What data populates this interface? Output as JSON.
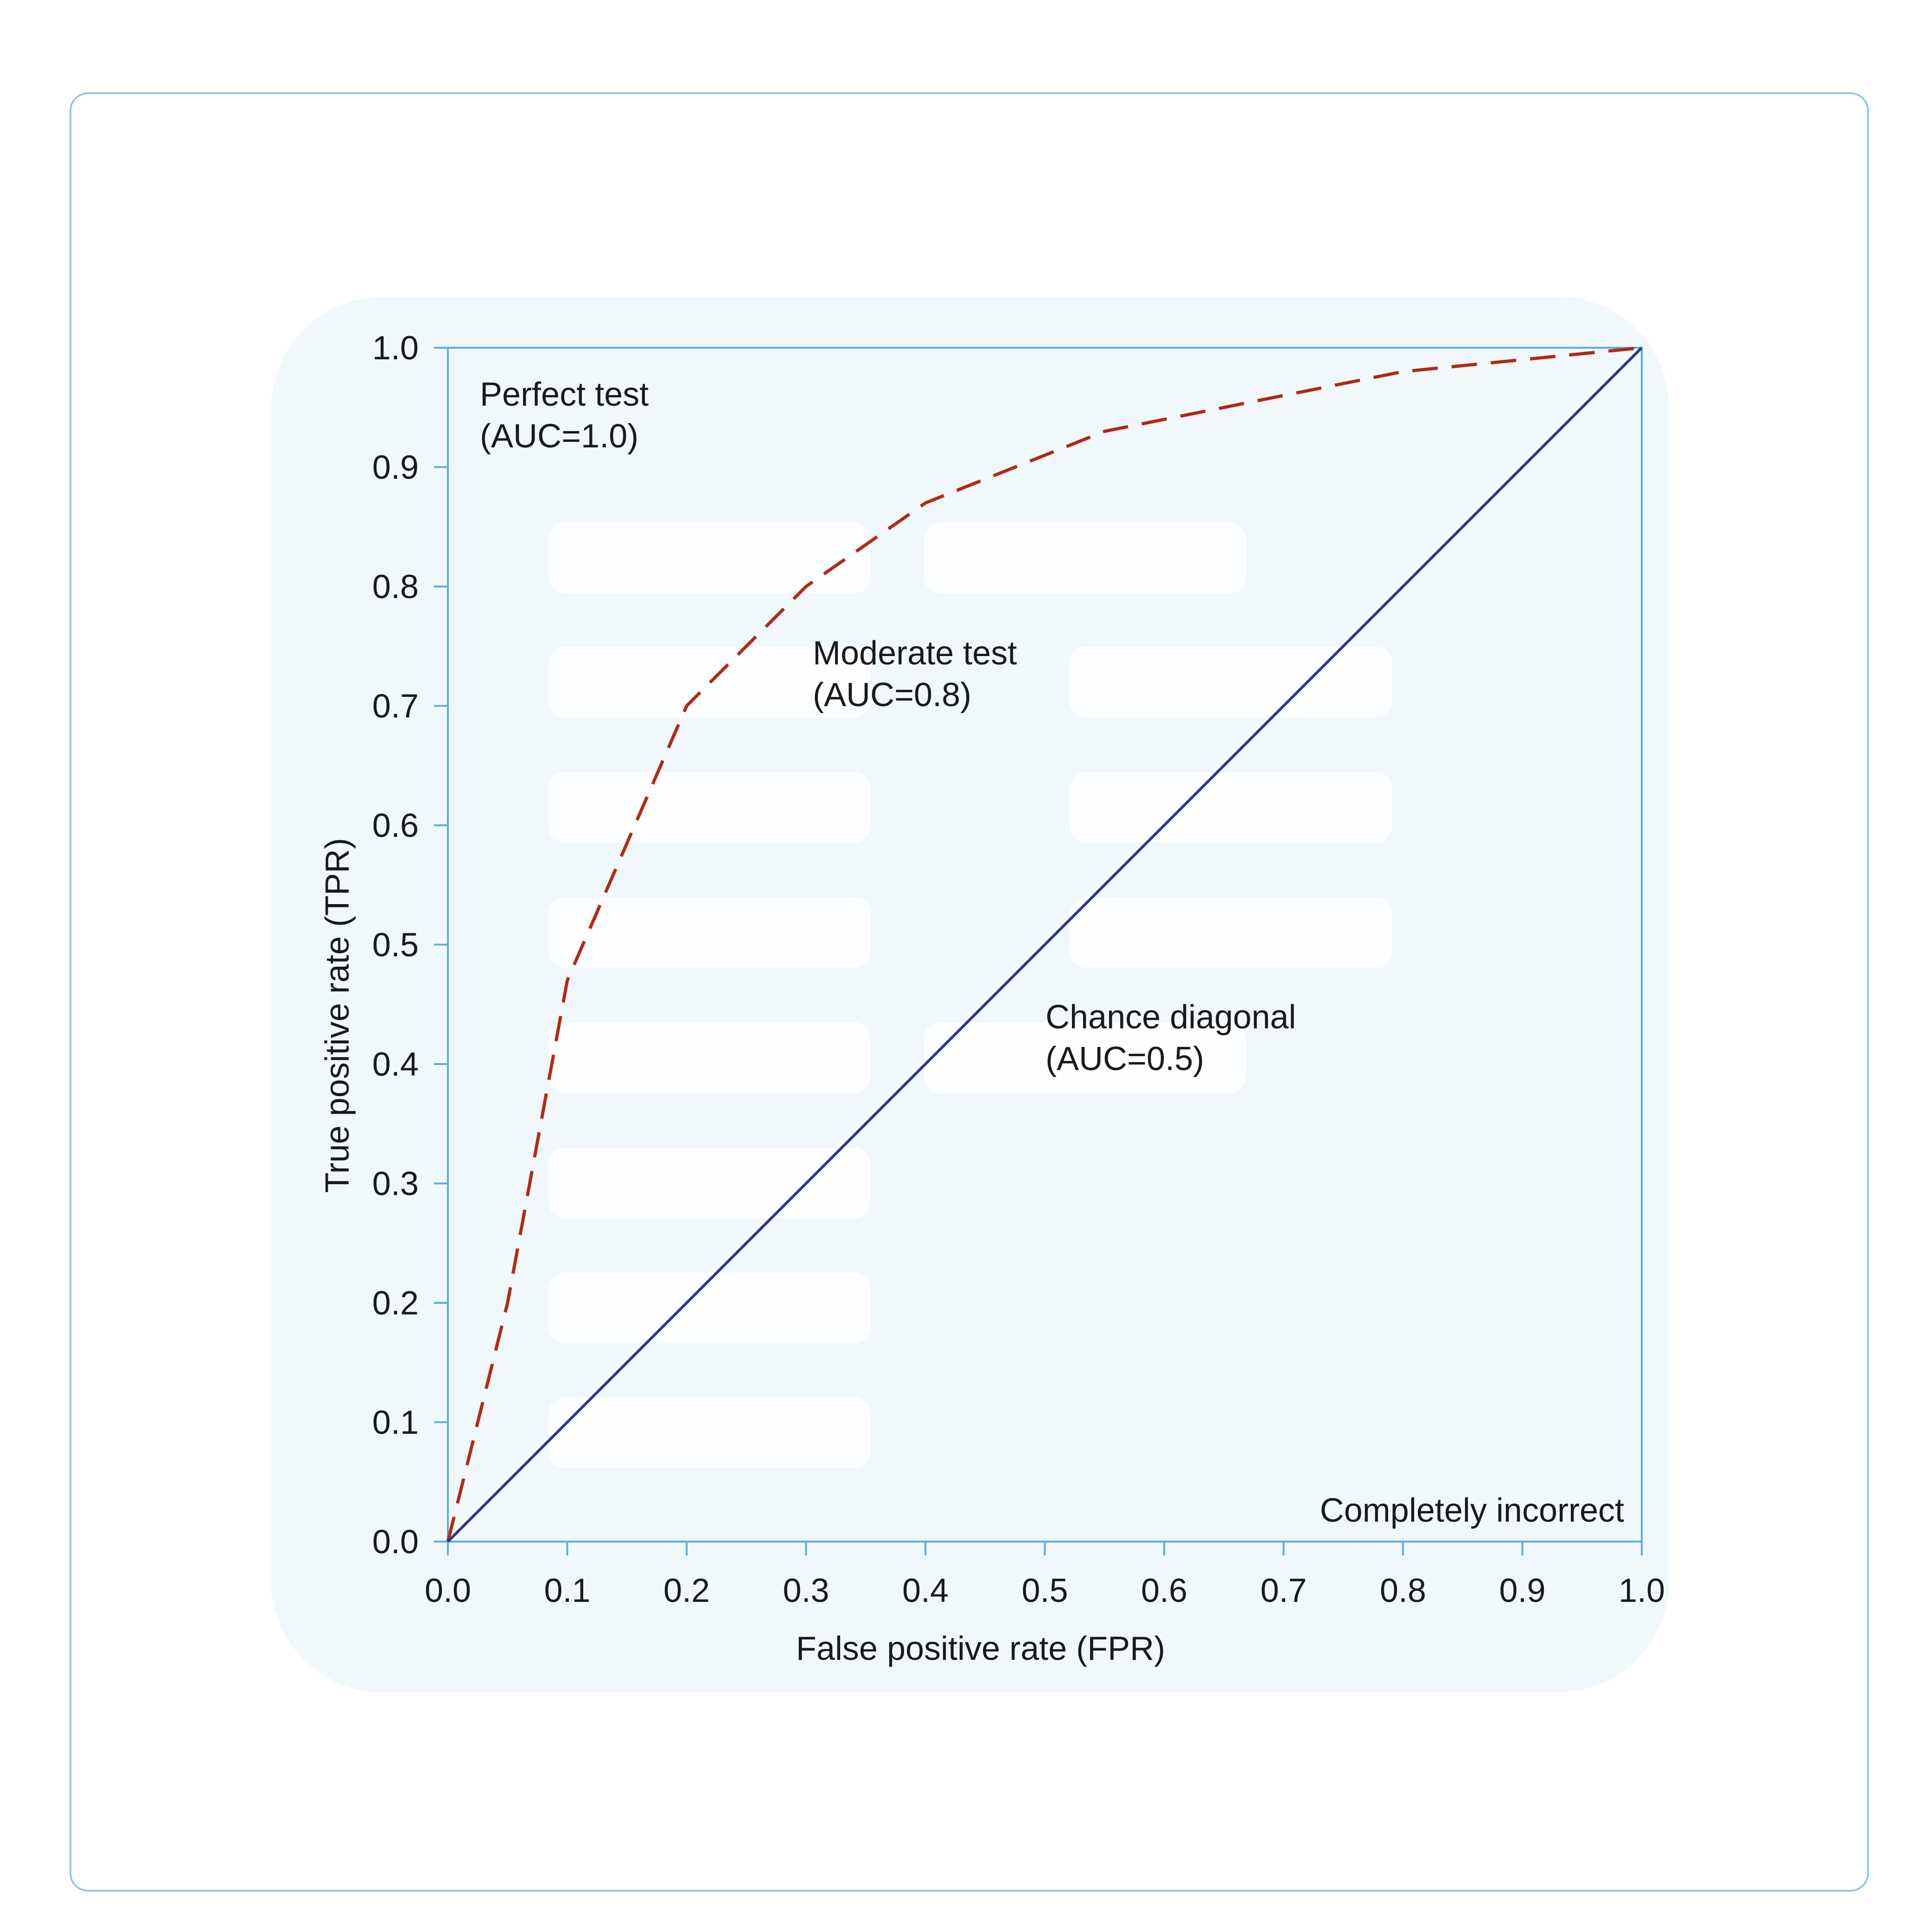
{
  "chart_data": {
    "type": "line",
    "title": "",
    "xlabel": "False positive rate (FPR)",
    "ylabel": "True positive rate (TPR)",
    "xlim": [
      0,
      1
    ],
    "ylim": [
      0,
      1
    ],
    "x_ticks": [
      "0.0",
      "0.1",
      "0.2",
      "0.3",
      "0.4",
      "0.5",
      "0.6",
      "0.7",
      "0.8",
      "0.9",
      "1.0"
    ],
    "y_ticks": [
      "0.0",
      "0.1",
      "0.2",
      "0.3",
      "0.4",
      "0.5",
      "0.6",
      "0.7",
      "0.8",
      "0.9",
      "1.0"
    ],
    "grid": false,
    "series": [
      {
        "style": "dashed",
        "color": "#b22a12",
        "x": [
          0.0,
          0.05,
          0.1,
          0.2,
          0.3,
          0.4,
          0.55,
          0.8,
          1.0
        ],
        "y": [
          0.0,
          0.2,
          0.47,
          0.7,
          0.8,
          0.87,
          0.93,
          0.98,
          1.0
        ]
      },
      {
        "style": "solid",
        "color": "#2d3a8c",
        "x": [
          0.0,
          1.0
        ],
        "y": [
          0.0,
          1.0
        ]
      }
    ],
    "annotations": [
      {
        "id": "perfect",
        "lines": [
          "Perfect test",
          "(AUC=1.0)"
        ]
      },
      {
        "id": "moderate",
        "lines": [
          "Moderate test",
          "(AUC=0.8)"
        ]
      },
      {
        "id": "chance",
        "lines": [
          "Chance diagonal",
          "(AUC=0.5)"
        ]
      },
      {
        "id": "incorrect",
        "lines": [
          "Completely incorrect"
        ]
      }
    ],
    "colors": {
      "axis": "#5aaed9",
      "panel": "#f1f8fc",
      "frame": "#8ec9e8"
    }
  }
}
